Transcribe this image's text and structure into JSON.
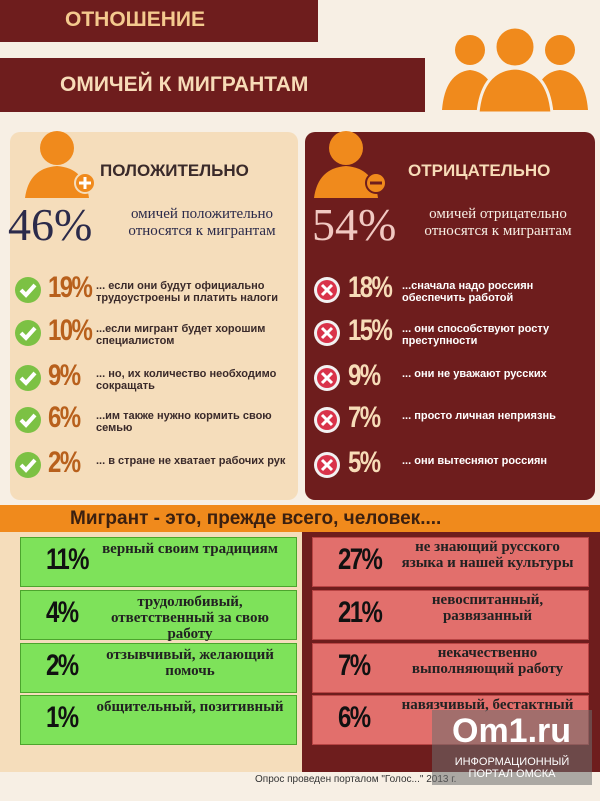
{
  "header": {
    "title_line1": "ОТНОШЕНИЕ",
    "title_line2": "ОМИЧЕЙ К МИГРАНТАМ"
  },
  "positive": {
    "heading": "ПОЛОЖИТЕЛЬНО",
    "total": "46%",
    "total_text": "омичей положительно относятся к мигрантам",
    "items": [
      {
        "pct": "19%",
        "text": "... если они будут официально трудоустроены и платить налоги"
      },
      {
        "pct": "10%",
        "text": "...если мигрант будет хорошим специалистом"
      },
      {
        "pct": "9%",
        "text": "... но, их количество необходимо сокращать"
      },
      {
        "pct": "6%",
        "text": "...им также нужно кормить свою семью"
      },
      {
        "pct": "2%",
        "text": "... в стране не хватает рабочих рук"
      }
    ]
  },
  "negative": {
    "heading": "ОТРИЦАТЕЛЬНО",
    "total": "54%",
    "total_text": "омичей отрицательно относятся к мигрантам",
    "items": [
      {
        "pct": "18%",
        "text": "...сначала надо россиян обеспечить работой"
      },
      {
        "pct": "15%",
        "text": "... они способствуют росту преступности"
      },
      {
        "pct": "9%",
        "text": "... они не уважают русских"
      },
      {
        "pct": "7%",
        "text": "... просто личная неприязнь"
      },
      {
        "pct": "5%",
        "text": "... они вытесняют россиян"
      }
    ]
  },
  "banner": "Мигрант - это, прежде всего, человек....",
  "traits_positive": [
    {
      "pct": "11%",
      "text": "верный своим традициям"
    },
    {
      "pct": "4%",
      "text": "трудолюбивый, ответственный за свою работу"
    },
    {
      "pct": "2%",
      "text": "отзывчивый, желающий помочь"
    },
    {
      "pct": "1%",
      "text": "общительный, позитивный"
    }
  ],
  "traits_negative": [
    {
      "pct": "27%",
      "text": "не знающий русского языка и нашей культуры"
    },
    {
      "pct": "21%",
      "text": "невоспитанный, развязанный"
    },
    {
      "pct": "7%",
      "text": "некачественно выполняющий работу"
    },
    {
      "pct": "6%",
      "text": "навязчивый, бестактный"
    }
  ],
  "footer": "Опрос проведен порталом \"Голос...\" 2013 г.",
  "watermark": {
    "logo": "Om1.ru",
    "caption": "ИНФОРМАЦИОННЫЙ ПОРТАЛ ОМСКА"
  }
}
